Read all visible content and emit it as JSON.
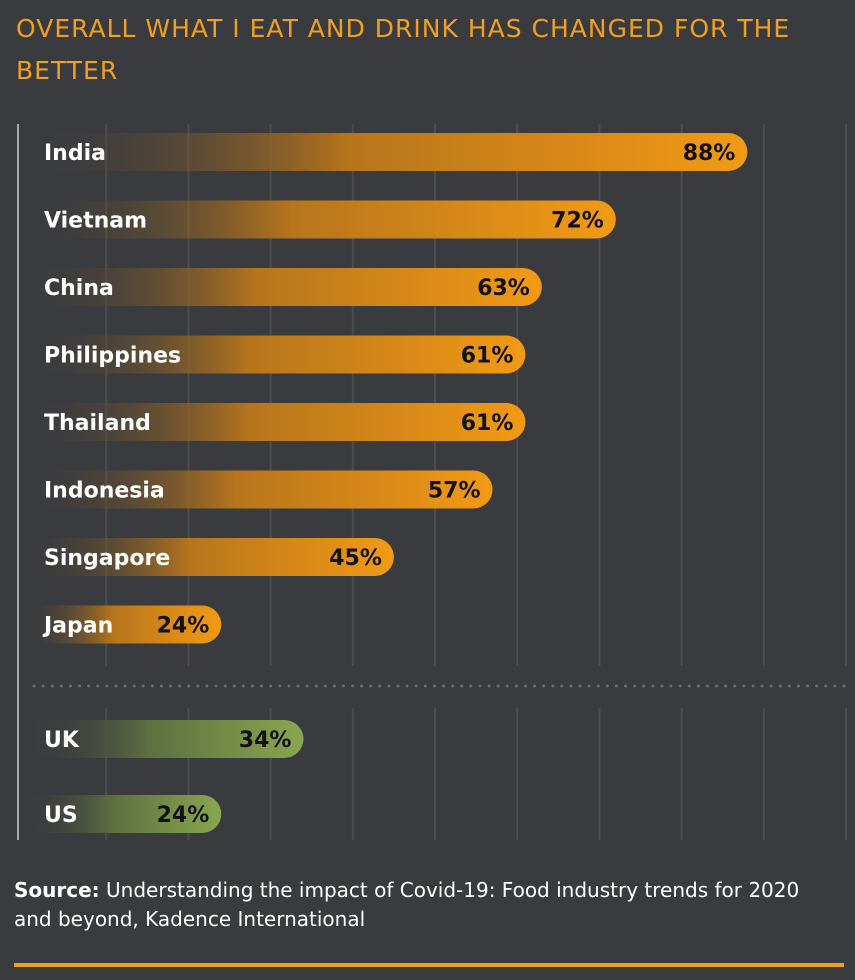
{
  "title": "OVERALL WHAT I EAT AND DRINK HAS CHANGED FOR THE BETTER",
  "source": {
    "label": "Source:",
    "text": "Understanding the impact of Covid-19: Food industry trends for 2020 and beyond, Kadence International"
  },
  "colors": {
    "background": "#3a3b3e",
    "accent": "#f0a020",
    "asia_bar": "#f29a14",
    "west_bar": "#8aa64e",
    "grid": "#4c4d51"
  },
  "chart_data": {
    "type": "bar",
    "orientation": "horizontal",
    "unit": "%",
    "xlim": [
      0,
      100
    ],
    "groups": [
      {
        "name": "asia",
        "categories": [
          "India",
          "Vietnam",
          "China",
          "Philippines",
          "Thailand",
          "Indonesia",
          "Singapore",
          "Japan"
        ],
        "values": [
          88,
          72,
          63,
          61,
          61,
          57,
          45,
          24
        ],
        "labels": [
          "88%",
          "72%",
          "63%",
          "61%",
          "61%",
          "57%",
          "45%",
          "24%"
        ]
      },
      {
        "name": "west",
        "categories": [
          "UK",
          "US"
        ],
        "values": [
          34,
          24
        ],
        "labels": [
          "34%",
          "24%"
        ]
      }
    ]
  }
}
